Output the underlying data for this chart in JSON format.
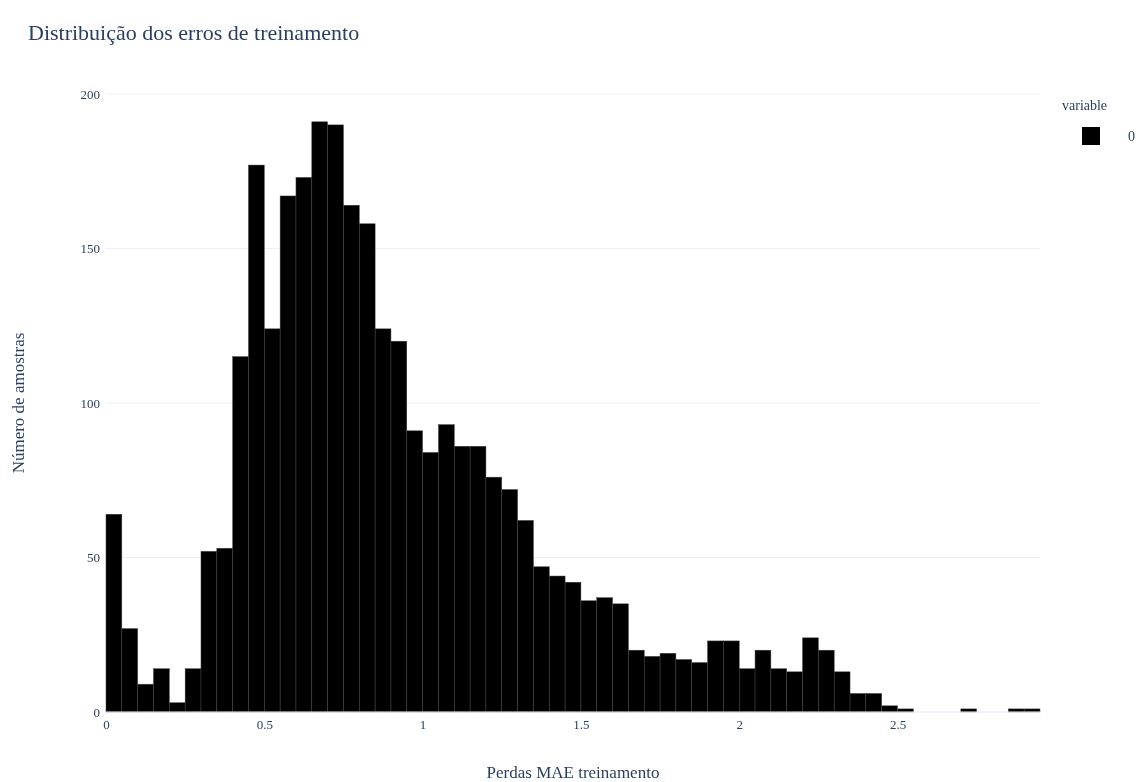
{
  "chart_data": {
    "type": "histogram",
    "title": "Distribuição dos erros de treinamento",
    "xlabel": "Perdas MAE treinamento",
    "ylabel": "Número de amostras",
    "legend_title": "variable",
    "bins": [
      0,
      0.05,
      0.1,
      0.15,
      0.2,
      0.25,
      0.3,
      0.35,
      0.4,
      0.45,
      0.5,
      0.55,
      0.6,
      0.65,
      0.7,
      0.75,
      0.8,
      0.85,
      0.9,
      0.95,
      1,
      1.05,
      1.1,
      1.15,
      1.2,
      1.25,
      1.3,
      1.35,
      1.4,
      1.45,
      1.5,
      1.55,
      1.6,
      1.65,
      1.7,
      1.75,
      1.8,
      1.85,
      1.9,
      1.95,
      2,
      2.05,
      2.1,
      2.15,
      2.2,
      2.25,
      2.3,
      2.35,
      2.4,
      2.45,
      2.5,
      2.55,
      2.6,
      2.65,
      2.7,
      2.75,
      2.8,
      2.85,
      2.9,
      2.95
    ],
    "series": [
      {
        "name": "0",
        "color": "#000000",
        "values": [
          64,
          27,
          9,
          14,
          3,
          14,
          52,
          53,
          115,
          177,
          124,
          167,
          173,
          191,
          190,
          164,
          158,
          124,
          120,
          91,
          84,
          93,
          86,
          86,
          76,
          72,
          62,
          47,
          44,
          42,
          36,
          37,
          35,
          20,
          18,
          19,
          17,
          16,
          23,
          23,
          14,
          20,
          14,
          13,
          24,
          20,
          13,
          6,
          6,
          2,
          1,
          0,
          0,
          0,
          1,
          0,
          0,
          1,
          1
        ]
      }
    ],
    "xlim": [
      0,
      2.95
    ],
    "ylim": [
      0,
      200
    ],
    "xticks": [
      0,
      0.5,
      1,
      1.5,
      2,
      2.5
    ],
    "yticks": [
      0,
      50,
      100,
      150,
      200
    ],
    "grid": "y",
    "legend": "top right"
  }
}
